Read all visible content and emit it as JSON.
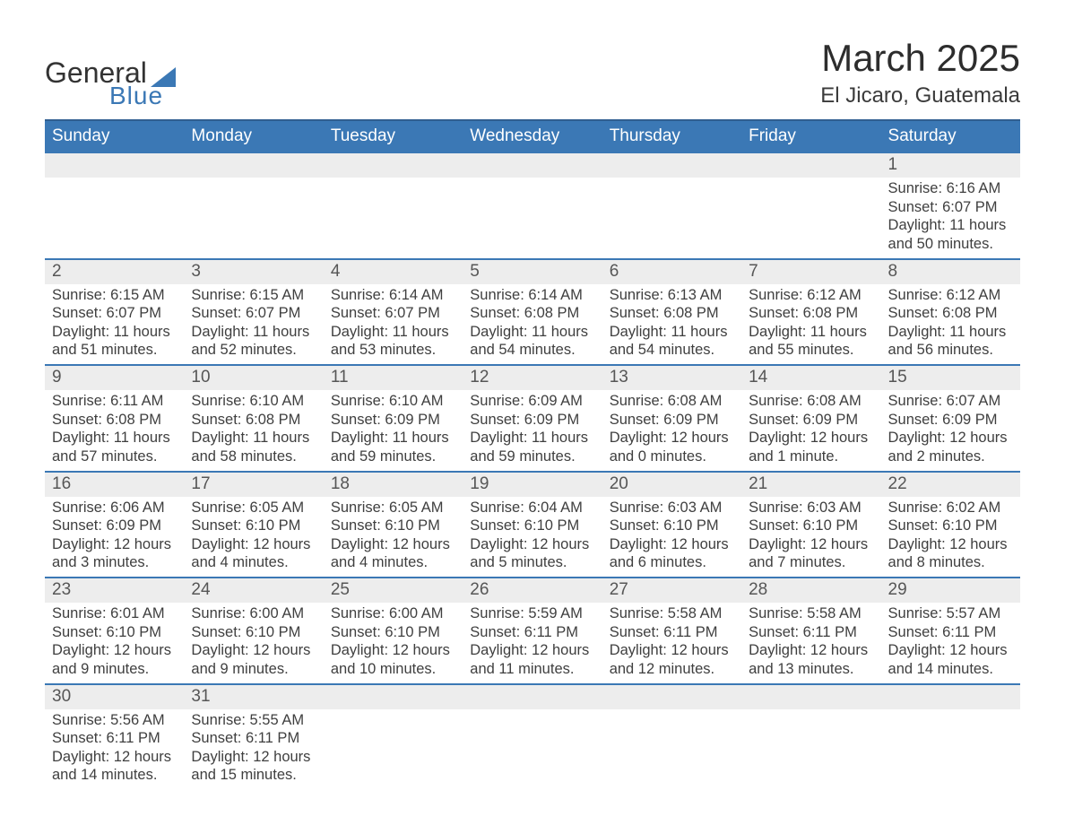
{
  "logo": {
    "word1": "General",
    "word2": "Blue"
  },
  "title": "March 2025",
  "location": "El Jicaro, Guatemala",
  "colors": {
    "header_bg": "#3b78b5",
    "header_border": "#305e90",
    "week_divider": "#3b78b5",
    "daynum_bg": "#ededed",
    "text": "#3a3a3a",
    "page_bg": "#ffffff"
  },
  "typography": {
    "title_fontsize": 42,
    "location_fontsize": 24,
    "dow_fontsize": 19,
    "daynum_fontsize": 19,
    "body_fontsize": 16.5
  },
  "days_of_week": [
    "Sunday",
    "Monday",
    "Tuesday",
    "Wednesday",
    "Thursday",
    "Friday",
    "Saturday"
  ],
  "weeks": [
    [
      {
        "n": "",
        "sunrise": "",
        "sunset": "",
        "daylight": ""
      },
      {
        "n": "",
        "sunrise": "",
        "sunset": "",
        "daylight": ""
      },
      {
        "n": "",
        "sunrise": "",
        "sunset": "",
        "daylight": ""
      },
      {
        "n": "",
        "sunrise": "",
        "sunset": "",
        "daylight": ""
      },
      {
        "n": "",
        "sunrise": "",
        "sunset": "",
        "daylight": ""
      },
      {
        "n": "",
        "sunrise": "",
        "sunset": "",
        "daylight": ""
      },
      {
        "n": "1",
        "sunrise": "Sunrise: 6:16 AM",
        "sunset": "Sunset: 6:07 PM",
        "daylight": "Daylight: 11 hours and 50 minutes."
      }
    ],
    [
      {
        "n": "2",
        "sunrise": "Sunrise: 6:15 AM",
        "sunset": "Sunset: 6:07 PM",
        "daylight": "Daylight: 11 hours and 51 minutes."
      },
      {
        "n": "3",
        "sunrise": "Sunrise: 6:15 AM",
        "sunset": "Sunset: 6:07 PM",
        "daylight": "Daylight: 11 hours and 52 minutes."
      },
      {
        "n": "4",
        "sunrise": "Sunrise: 6:14 AM",
        "sunset": "Sunset: 6:07 PM",
        "daylight": "Daylight: 11 hours and 53 minutes."
      },
      {
        "n": "5",
        "sunrise": "Sunrise: 6:14 AM",
        "sunset": "Sunset: 6:08 PM",
        "daylight": "Daylight: 11 hours and 54 minutes."
      },
      {
        "n": "6",
        "sunrise": "Sunrise: 6:13 AM",
        "sunset": "Sunset: 6:08 PM",
        "daylight": "Daylight: 11 hours and 54 minutes."
      },
      {
        "n": "7",
        "sunrise": "Sunrise: 6:12 AM",
        "sunset": "Sunset: 6:08 PM",
        "daylight": "Daylight: 11 hours and 55 minutes."
      },
      {
        "n": "8",
        "sunrise": "Sunrise: 6:12 AM",
        "sunset": "Sunset: 6:08 PM",
        "daylight": "Daylight: 11 hours and 56 minutes."
      }
    ],
    [
      {
        "n": "9",
        "sunrise": "Sunrise: 6:11 AM",
        "sunset": "Sunset: 6:08 PM",
        "daylight": "Daylight: 11 hours and 57 minutes."
      },
      {
        "n": "10",
        "sunrise": "Sunrise: 6:10 AM",
        "sunset": "Sunset: 6:08 PM",
        "daylight": "Daylight: 11 hours and 58 minutes."
      },
      {
        "n": "11",
        "sunrise": "Sunrise: 6:10 AM",
        "sunset": "Sunset: 6:09 PM",
        "daylight": "Daylight: 11 hours and 59 minutes."
      },
      {
        "n": "12",
        "sunrise": "Sunrise: 6:09 AM",
        "sunset": "Sunset: 6:09 PM",
        "daylight": "Daylight: 11 hours and 59 minutes."
      },
      {
        "n": "13",
        "sunrise": "Sunrise: 6:08 AM",
        "sunset": "Sunset: 6:09 PM",
        "daylight": "Daylight: 12 hours and 0 minutes."
      },
      {
        "n": "14",
        "sunrise": "Sunrise: 6:08 AM",
        "sunset": "Sunset: 6:09 PM",
        "daylight": "Daylight: 12 hours and 1 minute."
      },
      {
        "n": "15",
        "sunrise": "Sunrise: 6:07 AM",
        "sunset": "Sunset: 6:09 PM",
        "daylight": "Daylight: 12 hours and 2 minutes."
      }
    ],
    [
      {
        "n": "16",
        "sunrise": "Sunrise: 6:06 AM",
        "sunset": "Sunset: 6:09 PM",
        "daylight": "Daylight: 12 hours and 3 minutes."
      },
      {
        "n": "17",
        "sunrise": "Sunrise: 6:05 AM",
        "sunset": "Sunset: 6:10 PM",
        "daylight": "Daylight: 12 hours and 4 minutes."
      },
      {
        "n": "18",
        "sunrise": "Sunrise: 6:05 AM",
        "sunset": "Sunset: 6:10 PM",
        "daylight": "Daylight: 12 hours and 4 minutes."
      },
      {
        "n": "19",
        "sunrise": "Sunrise: 6:04 AM",
        "sunset": "Sunset: 6:10 PM",
        "daylight": "Daylight: 12 hours and 5 minutes."
      },
      {
        "n": "20",
        "sunrise": "Sunrise: 6:03 AM",
        "sunset": "Sunset: 6:10 PM",
        "daylight": "Daylight: 12 hours and 6 minutes."
      },
      {
        "n": "21",
        "sunrise": "Sunrise: 6:03 AM",
        "sunset": "Sunset: 6:10 PM",
        "daylight": "Daylight: 12 hours and 7 minutes."
      },
      {
        "n": "22",
        "sunrise": "Sunrise: 6:02 AM",
        "sunset": "Sunset: 6:10 PM",
        "daylight": "Daylight: 12 hours and 8 minutes."
      }
    ],
    [
      {
        "n": "23",
        "sunrise": "Sunrise: 6:01 AM",
        "sunset": "Sunset: 6:10 PM",
        "daylight": "Daylight: 12 hours and 9 minutes."
      },
      {
        "n": "24",
        "sunrise": "Sunrise: 6:00 AM",
        "sunset": "Sunset: 6:10 PM",
        "daylight": "Daylight: 12 hours and 9 minutes."
      },
      {
        "n": "25",
        "sunrise": "Sunrise: 6:00 AM",
        "sunset": "Sunset: 6:10 PM",
        "daylight": "Daylight: 12 hours and 10 minutes."
      },
      {
        "n": "26",
        "sunrise": "Sunrise: 5:59 AM",
        "sunset": "Sunset: 6:11 PM",
        "daylight": "Daylight: 12 hours and 11 minutes."
      },
      {
        "n": "27",
        "sunrise": "Sunrise: 5:58 AM",
        "sunset": "Sunset: 6:11 PM",
        "daylight": "Daylight: 12 hours and 12 minutes."
      },
      {
        "n": "28",
        "sunrise": "Sunrise: 5:58 AM",
        "sunset": "Sunset: 6:11 PM",
        "daylight": "Daylight: 12 hours and 13 minutes."
      },
      {
        "n": "29",
        "sunrise": "Sunrise: 5:57 AM",
        "sunset": "Sunset: 6:11 PM",
        "daylight": "Daylight: 12 hours and 14 minutes."
      }
    ],
    [
      {
        "n": "30",
        "sunrise": "Sunrise: 5:56 AM",
        "sunset": "Sunset: 6:11 PM",
        "daylight": "Daylight: 12 hours and 14 minutes."
      },
      {
        "n": "31",
        "sunrise": "Sunrise: 5:55 AM",
        "sunset": "Sunset: 6:11 PM",
        "daylight": "Daylight: 12 hours and 15 minutes."
      },
      {
        "n": "",
        "sunrise": "",
        "sunset": "",
        "daylight": ""
      },
      {
        "n": "",
        "sunrise": "",
        "sunset": "",
        "daylight": ""
      },
      {
        "n": "",
        "sunrise": "",
        "sunset": "",
        "daylight": ""
      },
      {
        "n": "",
        "sunrise": "",
        "sunset": "",
        "daylight": ""
      },
      {
        "n": "",
        "sunrise": "",
        "sunset": "",
        "daylight": ""
      }
    ]
  ]
}
